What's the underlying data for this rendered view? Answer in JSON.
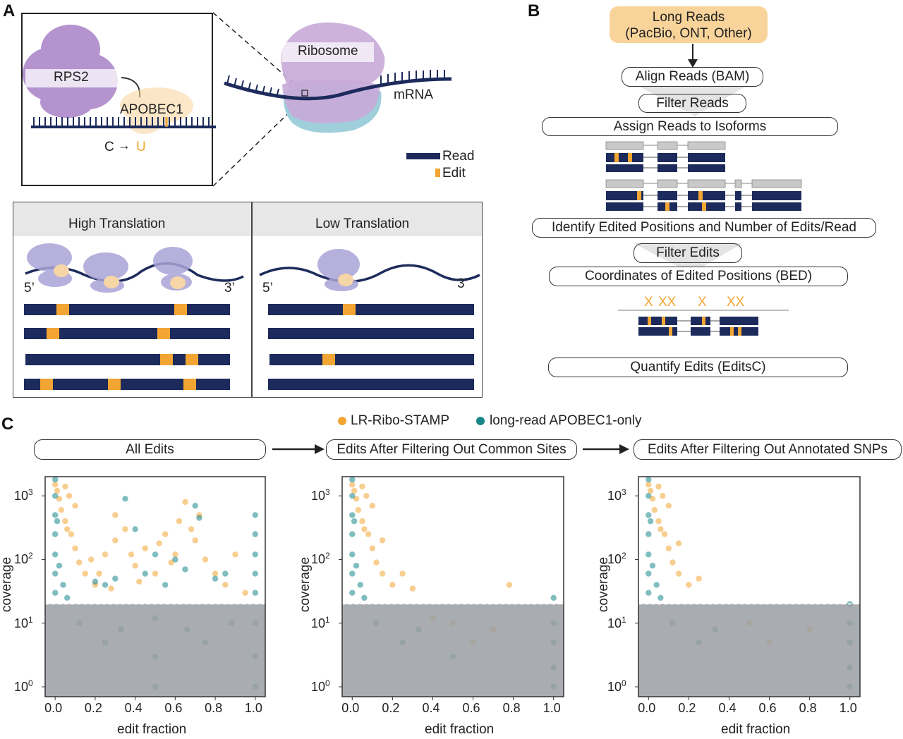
{
  "colors": {
    "navy": "#1d2b5c",
    "edit_orange": "#f2a533",
    "teal": "#17878a",
    "lavender": "#a9a3d6",
    "purple": "#9b6fbf",
    "gray_header": "#e7e7e7",
    "filter_gray": "#9a9ea2",
    "orange_box": "#f9d49a"
  },
  "panel_a": {
    "letter": "A",
    "rps2": "RPS2",
    "apobec1": "APOBEC1",
    "c_label": "C",
    "arrow": "→",
    "u_label": "U",
    "ribosome": "Ribosome",
    "mrna": "mRNA",
    "legend_read": "Read",
    "legend_edit": "Edit",
    "high_title": "High Translation",
    "low_title": "Low Translation",
    "five_prime": "5’",
    "three_prime": "3’"
  },
  "panel_b": {
    "letter": "B",
    "long_reads_line1": "Long Reads",
    "long_reads_line2": "(PacBio, ONT, Other)",
    "align": "Align Reads (BAM)",
    "filter_reads": "Filter Reads",
    "assign": "Assign Reads to Isoforms",
    "identify": "Identify Edited Positions and Number of Edits/Read",
    "filter_edits": "Filter Edits",
    "coords": "Coordinates of Edited Positions (BED)",
    "x_marks": [
      "X",
      "XX",
      "X",
      "XX"
    ],
    "quantify": "Quantify Edits (EditsC)"
  },
  "panel_c": {
    "letter": "C",
    "legend": [
      {
        "name": "LR-Ribo-STAMP",
        "color": "#f2a533"
      },
      {
        "name": "long-read APOBEC1-only",
        "color": "#17878a"
      }
    ],
    "stages": [
      "All Edits",
      "Edits After Filtering Out Common Sites",
      "Edits After Filtering Out Annotated SNPs"
    ]
  },
  "chart_data": [
    {
      "type": "scatter",
      "title": "All Edits",
      "xlabel": "edit fraction",
      "ylabel": "coverage",
      "xlim": [
        -0.05,
        1.05
      ],
      "ylim": [
        0.7,
        2000
      ],
      "yscale": "log",
      "x_ticks": [
        "0.0",
        "0.2",
        "0.4",
        "0.6",
        "0.8",
        "1.0"
      ],
      "y_ticks": [
        "10",
        "10",
        "10",
        "10"
      ],
      "y_tick_exponents": [
        "0",
        "1",
        "2",
        "3"
      ],
      "coverage_threshold": 20,
      "series": [
        {
          "name": "LR-Ribo-STAMP",
          "points": [
            [
              0.0,
              1500
            ],
            [
              0.01,
              1200
            ],
            [
              0.02,
              900
            ],
            [
              0.03,
              600
            ],
            [
              0.05,
              400
            ],
            [
              0.08,
              250
            ],
            [
              0.1,
              150
            ],
            [
              0.12,
              90
            ],
            [
              0.15,
              60
            ],
            [
              0.2,
              40
            ],
            [
              0.05,
              1400
            ],
            [
              0.07,
              1000
            ],
            [
              0.1,
              700
            ],
            [
              0.06,
              300
            ],
            [
              0.25,
              120
            ],
            [
              0.3,
              200
            ],
            [
              0.35,
              300
            ],
            [
              0.4,
              80
            ],
            [
              0.45,
              150
            ],
            [
              0.5,
              60
            ],
            [
              0.55,
              250
            ],
            [
              0.6,
              120
            ],
            [
              0.62,
              400
            ],
            [
              0.65,
              800
            ],
            [
              0.7,
              200
            ],
            [
              0.75,
              100
            ],
            [
              0.8,
              60
            ],
            [
              0.85,
              40
            ],
            [
              0.9,
              120
            ],
            [
              0.3,
              500
            ],
            [
              0.22,
              60
            ],
            [
              0.28,
              35
            ],
            [
              0.42,
              45
            ],
            [
              0.58,
              90
            ],
            [
              0.68,
              300
            ],
            [
              0.72,
              500
            ],
            [
              0.52,
              180
            ],
            [
              0.38,
              120
            ],
            [
              0.18,
              100
            ],
            [
              0.95,
              30
            ]
          ]
        },
        {
          "name": "long-read APOBEC1-only",
          "points": [
            [
              0.0,
              1800
            ],
            [
              0.0,
              1000
            ],
            [
              0.0,
              500
            ],
            [
              0.0,
              250
            ],
            [
              0.0,
              120
            ],
            [
              0.0,
              60
            ],
            [
              0.0,
              30
            ],
            [
              0.01,
              400
            ],
            [
              0.02,
              80
            ],
            [
              0.04,
              40
            ],
            [
              0.06,
              25
            ],
            [
              1.0,
              500
            ],
            [
              1.0,
              250
            ],
            [
              1.0,
              120
            ],
            [
              1.0,
              60
            ],
            [
              1.0,
              30
            ],
            [
              0.35,
              900
            ],
            [
              0.4,
              300
            ],
            [
              0.45,
              60
            ],
            [
              0.5,
              120
            ],
            [
              0.55,
              40
            ],
            [
              0.6,
              100
            ],
            [
              0.65,
              70
            ],
            [
              0.7,
              700
            ],
            [
              0.72,
              450
            ],
            [
              0.3,
              50
            ],
            [
              0.25,
              40
            ],
            [
              0.2,
              45
            ],
            [
              0.8,
              50
            ],
            [
              0.85,
              60
            ],
            [
              0.5,
              12
            ],
            [
              0.33,
              8
            ],
            [
              0.66,
              8
            ],
            [
              0.25,
              5
            ],
            [
              0.75,
              5
            ],
            [
              0.5,
              3
            ],
            [
              0.12,
              10
            ],
            [
              0.88,
              10
            ],
            [
              1.0,
              10
            ],
            [
              1.0,
              3
            ],
            [
              1.0,
              1
            ],
            [
              0.5,
              1
            ]
          ]
        }
      ]
    },
    {
      "type": "scatter",
      "title": "Edits After Filtering Out Common Sites",
      "xlabel": "edit fraction",
      "ylabel": "coverage",
      "xlim": [
        -0.05,
        1.05
      ],
      "ylim": [
        0.7,
        2000
      ],
      "yscale": "log",
      "x_ticks": [
        "0.0",
        "0.2",
        "0.4",
        "0.6",
        "0.8",
        "1.0"
      ],
      "y_ticks": [
        "10",
        "10",
        "10",
        "10"
      ],
      "y_tick_exponents": [
        "0",
        "1",
        "2",
        "3"
      ],
      "coverage_threshold": 20,
      "series": [
        {
          "name": "LR-Ribo-STAMP",
          "points": [
            [
              0.0,
              1500
            ],
            [
              0.01,
              1200
            ],
            [
              0.02,
              900
            ],
            [
              0.03,
              600
            ],
            [
              0.05,
              400
            ],
            [
              0.08,
              250
            ],
            [
              0.1,
              150
            ],
            [
              0.12,
              90
            ],
            [
              0.15,
              60
            ],
            [
              0.2,
              40
            ],
            [
              0.05,
              1400
            ],
            [
              0.07,
              1000
            ],
            [
              0.1,
              700
            ],
            [
              0.06,
              300
            ],
            [
              0.25,
              60
            ],
            [
              0.3,
              35
            ],
            [
              0.15,
              200
            ],
            [
              0.78,
              40
            ],
            [
              0.5,
              10
            ],
            [
              0.6,
              5
            ],
            [
              0.7,
              8
            ],
            [
              0.4,
              12
            ]
          ]
        },
        {
          "name": "long-read APOBEC1-only",
          "points": [
            [
              0.0,
              1800
            ],
            [
              0.0,
              1000
            ],
            [
              0.0,
              500
            ],
            [
              0.0,
              250
            ],
            [
              0.0,
              120
            ],
            [
              0.0,
              60
            ],
            [
              0.0,
              30
            ],
            [
              0.01,
              400
            ],
            [
              0.02,
              80
            ],
            [
              0.04,
              40
            ],
            [
              0.06,
              25
            ],
            [
              0.12,
              10
            ],
            [
              0.25,
              5
            ],
            [
              0.33,
              8
            ],
            [
              0.5,
              3
            ],
            [
              1.0,
              25
            ],
            [
              1.0,
              10
            ],
            [
              1.0,
              5
            ],
            [
              1.0,
              2
            ],
            [
              1.0,
              1
            ]
          ]
        }
      ]
    },
    {
      "type": "scatter",
      "title": "Edits After Filtering Out Annotated SNPs",
      "xlabel": "edit fraction",
      "ylabel": "coverage",
      "xlim": [
        -0.05,
        1.05
      ],
      "ylim": [
        0.7,
        2000
      ],
      "yscale": "log",
      "x_ticks": [
        "0.0",
        "0.2",
        "0.4",
        "0.6",
        "0.8",
        "1.0"
      ],
      "y_ticks": [
        "10",
        "10",
        "10",
        "10"
      ],
      "y_tick_exponents": [
        "0",
        "1",
        "2",
        "3"
      ],
      "coverage_threshold": 20,
      "series": [
        {
          "name": "LR-Ribo-STAMP",
          "points": [
            [
              0.0,
              1500
            ],
            [
              0.01,
              1200
            ],
            [
              0.02,
              900
            ],
            [
              0.03,
              600
            ],
            [
              0.05,
              400
            ],
            [
              0.08,
              250
            ],
            [
              0.1,
              150
            ],
            [
              0.12,
              90
            ],
            [
              0.15,
              60
            ],
            [
              0.2,
              40
            ],
            [
              0.05,
              1400
            ],
            [
              0.07,
              1000
            ],
            [
              0.1,
              700
            ],
            [
              0.06,
              300
            ],
            [
              0.25,
              50
            ],
            [
              0.15,
              180
            ],
            [
              0.5,
              10
            ],
            [
              0.6,
              5
            ],
            [
              0.8,
              8
            ]
          ]
        },
        {
          "name": "long-read APOBEC1-only",
          "points": [
            [
              0.0,
              1800
            ],
            [
              0.0,
              1000
            ],
            [
              0.0,
              500
            ],
            [
              0.0,
              250
            ],
            [
              0.0,
              120
            ],
            [
              0.0,
              60
            ],
            [
              0.0,
              30
            ],
            [
              0.01,
              400
            ],
            [
              0.02,
              80
            ],
            [
              0.04,
              40
            ],
            [
              0.06,
              25
            ],
            [
              0.12,
              10
            ],
            [
              0.25,
              5
            ],
            [
              0.33,
              8
            ],
            [
              1.0,
              20
            ],
            [
              1.0,
              10
            ],
            [
              1.0,
              5
            ],
            [
              1.0,
              2
            ],
            [
              1.0,
              1
            ]
          ]
        }
      ]
    }
  ]
}
